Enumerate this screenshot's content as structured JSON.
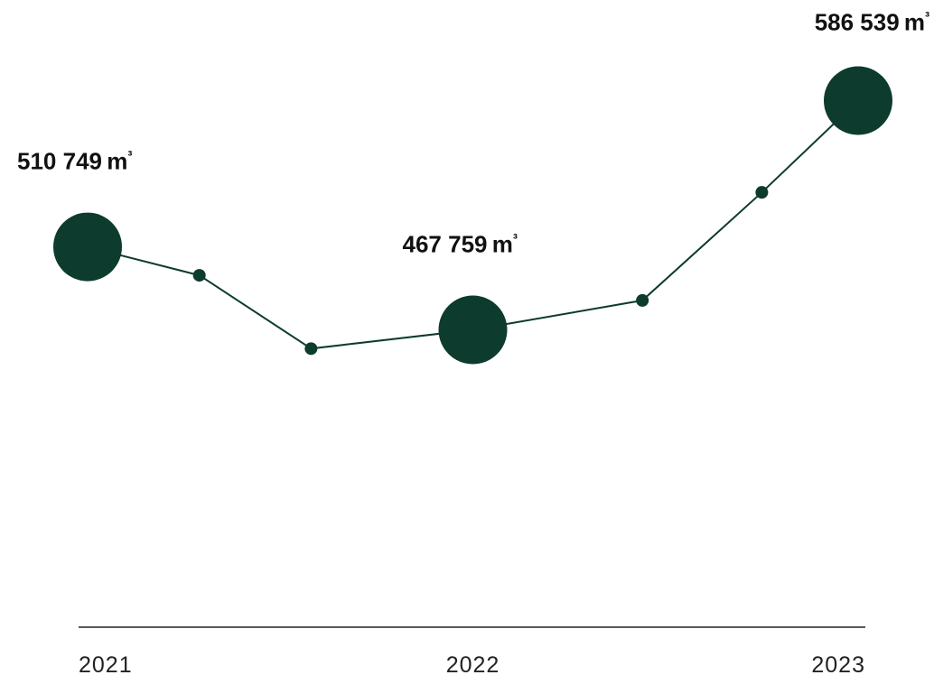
{
  "chart_data": {
    "type": "line",
    "unit": "m",
    "unit_exponent": "³",
    "x_ticks": [
      "2021",
      "2022",
      "2023"
    ],
    "major_points": [
      {
        "year": "2021",
        "value": 510749,
        "label": "510 749"
      },
      {
        "year": "2022",
        "value": 467759,
        "label": "467 759"
      },
      {
        "year": "2023",
        "value": 586539,
        "label": "586 539"
      }
    ],
    "minor_points": [
      {
        "x": 2021.29,
        "value": 496000
      },
      {
        "x": 2021.58,
        "value": 458000
      },
      {
        "x": 2022.44,
        "value": 483000
      },
      {
        "x": 2022.75,
        "value": 539000
      }
    ],
    "ylim": [
      330000,
      620000
    ],
    "xlim": [
      2021,
      2023
    ],
    "grid": false,
    "legend": "none",
    "colors": {
      "series": "#0d3b2e",
      "axis": "#222222"
    }
  }
}
